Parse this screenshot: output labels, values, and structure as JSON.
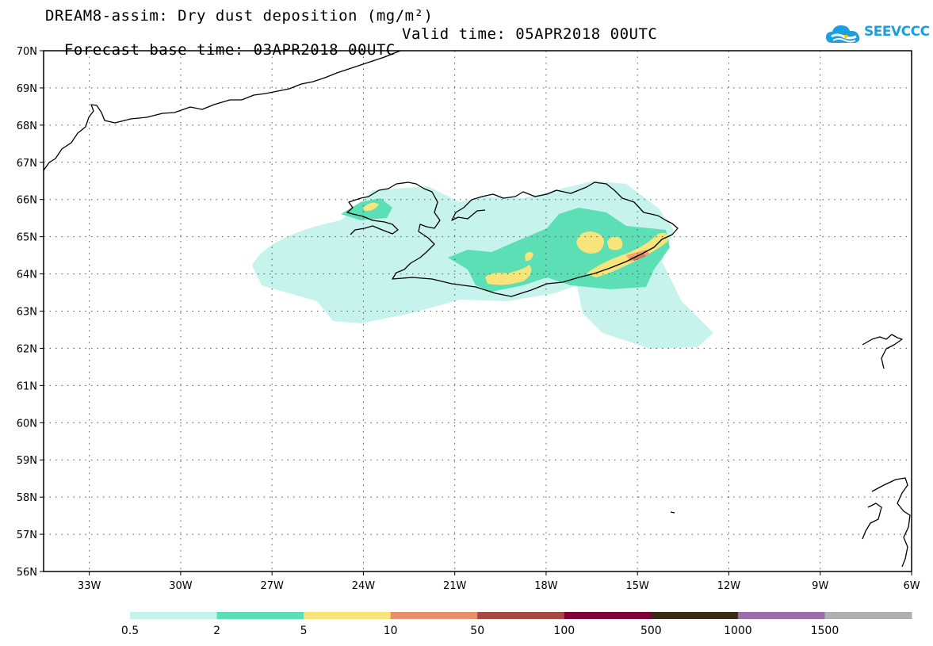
{
  "header": {
    "title_line1": "DREAM8-assim: Dry dust deposition (mg/m²)",
    "base_time": "Forecast base time: 03APR2018 00UTC",
    "valid_time": "Valid time: 05APR2018 00UTC"
  },
  "logo": {
    "text": "SEEVCCC",
    "icon": "cloud-logo-icon"
  },
  "map": {
    "lat_labels": [
      "70N",
      "69N",
      "68N",
      "67N",
      "66N",
      "65N",
      "64N",
      "63N",
      "62N",
      "61N",
      "60N",
      "59N",
      "58N",
      "57N",
      "56N"
    ],
    "lon_labels": [
      "33W",
      "30W",
      "27W",
      "24W",
      "21W",
      "18W",
      "15W",
      "12W",
      "9W",
      "6W"
    ],
    "lat_range": [
      56,
      70
    ],
    "lon_range": [
      -34.5,
      -6
    ],
    "grid": "dotted",
    "field_colors": {
      "c1": "#c6f3ec",
      "c2": "#5ddfb6",
      "c3": "#f7e47a",
      "c4": "#e98f6a",
      "c5": "#b04c47"
    }
  },
  "colorbar": {
    "labels": [
      "0.5",
      "2",
      "5",
      "10",
      "50",
      "100",
      "500",
      "1000",
      "1500"
    ],
    "colors": [
      "#c6f3ec",
      "#5ddfb6",
      "#f7e47a",
      "#e98f6a",
      "#a54a40",
      "#7e0035",
      "#3a2a18",
      "#9a6ca8",
      "#b0b0b0"
    ]
  }
}
